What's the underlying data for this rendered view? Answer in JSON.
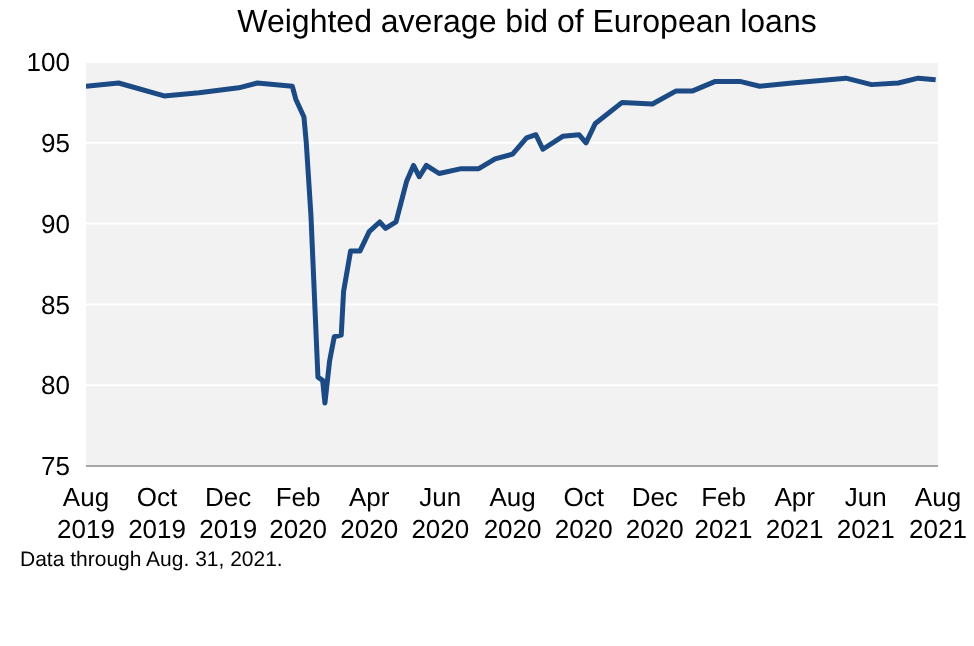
{
  "chart_data": {
    "type": "line",
    "title": "Weighted average bid of European loans",
    "x": [
      "2019-08-31",
      "2019-09-28",
      "2019-11-06",
      "2019-12-06",
      "2020-01-09",
      "2020-01-25",
      "2020-02-24",
      "2020-02-27",
      "2020-03-05",
      "2020-03-07",
      "2020-03-11",
      "2020-03-17",
      "2020-03-21",
      "2020-03-23",
      "2020-03-27",
      "2020-03-31",
      "2020-04-06",
      "2020-04-08",
      "2020-04-14",
      "2020-04-22",
      "2020-04-30",
      "2020-05-09",
      "2020-05-14",
      "2020-05-23",
      "2020-06-01",
      "2020-06-07",
      "2020-06-12",
      "2020-06-18",
      "2020-06-29",
      "2020-07-18",
      "2020-08-02",
      "2020-08-16",
      "2020-08-31",
      "2020-09-12",
      "2020-09-20",
      "2020-09-26",
      "2020-10-13",
      "2020-10-27",
      "2020-11-02",
      "2020-11-10",
      "2020-12-03",
      "2020-12-29",
      "2021-01-18",
      "2021-02-01",
      "2021-02-21",
      "2021-03-14",
      "2021-03-31",
      "2021-04-28",
      "2021-06-13",
      "2021-07-05",
      "2021-07-28",
      "2021-08-14",
      "2021-08-29"
    ],
    "series": [
      {
        "color": "#1b4a85",
        "values": [
          98.5,
          98.7,
          97.9,
          98.1,
          98.4,
          98.7,
          98.5,
          97.7,
          96.6,
          95,
          90.5,
          80.5,
          80.3,
          78.9,
          81.5,
          83,
          83.1,
          85.8,
          88.3,
          88.3,
          89.5,
          90.1,
          89.7,
          90.1,
          92.6,
          93.6,
          92.9,
          93.6,
          93.1,
          93.4,
          93.4,
          94,
          94.3,
          95.3,
          95.5,
          94.6,
          95.4,
          95.5,
          95,
          96.2,
          97.5,
          97.4,
          98.2,
          98.2,
          98.8,
          98.8,
          98.5,
          98.7,
          99,
          98.6,
          98.7,
          99,
          98.9
        ]
      }
    ],
    "xlim": [
      "2019-08-31",
      "2021-08-31"
    ],
    "xticks": [
      {
        "value": "2019-08-31",
        "label": "Aug 2019"
      },
      {
        "value": "2019-10-31",
        "label": "Oct 2019"
      },
      {
        "value": "2019-12-31",
        "label": "Dec 2019"
      },
      {
        "value": "2020-02-29",
        "label": "Feb 2020"
      },
      {
        "value": "2020-04-30",
        "label": "Apr 2020"
      },
      {
        "value": "2020-06-30",
        "label": "Jun 2020"
      },
      {
        "value": "2020-08-31",
        "label": "Aug 2020"
      },
      {
        "value": "2020-10-31",
        "label": "Oct 2020"
      },
      {
        "value": "2020-12-31",
        "label": "Dec 2020"
      },
      {
        "value": "2021-02-28",
        "label": "Feb 2021"
      },
      {
        "value": "2021-04-30",
        "label": "Apr 2021"
      },
      {
        "value": "2021-06-30",
        "label": "Jun 2021"
      },
      {
        "value": "2021-08-31",
        "label": "Aug 2021"
      }
    ],
    "ylim": [
      75,
      100
    ],
    "yticks": [
      75,
      80,
      85,
      90,
      95,
      100
    ],
    "grid": "y",
    "annotations": [
      "Data through Aug. 31, 2021."
    ]
  }
}
